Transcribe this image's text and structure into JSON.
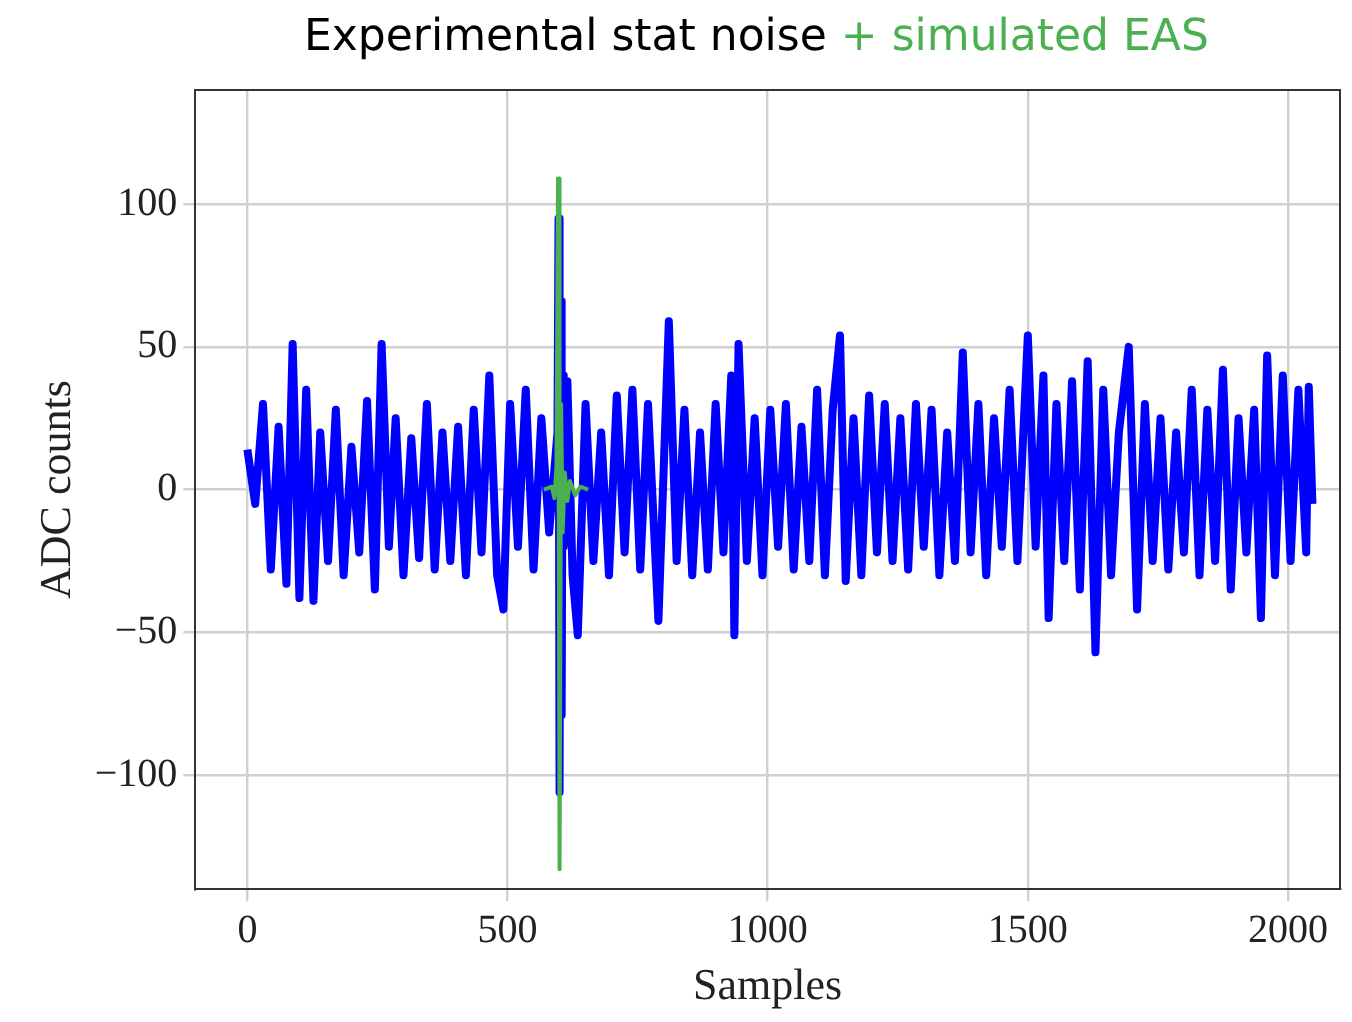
{
  "chart_data": {
    "type": "line",
    "title": "Experimental stat noise",
    "subtitle": "+ simulated EAS",
    "xlabel": "Samples",
    "ylabel": "ADC counts",
    "xlim": [
      -100,
      2100
    ],
    "xticks": [
      0,
      500,
      1000,
      1500,
      2000
    ],
    "ylim": [
      -140,
      140
    ],
    "yticks": [
      -100,
      -50,
      0,
      50,
      100
    ],
    "grid": true,
    "legend": false,
    "marker": "none",
    "line_style": "solid",
    "series": [
      {
        "color": "#0000ff",
        "x": [
          0,
          15,
          30,
          45,
          60,
          75,
          87,
          100,
          113,
          127,
          140,
          155,
          170,
          185,
          200,
          215,
          230,
          245,
          258,
          272,
          285,
          300,
          315,
          330,
          345,
          360,
          375,
          390,
          405,
          420,
          435,
          450,
          465,
          480,
          492,
          505,
          520,
          535,
          550,
          565,
          580,
          596,
          598,
          600,
          602,
          604,
          606,
          608,
          615,
          625,
          635,
          650,
          665,
          680,
          695,
          710,
          725,
          740,
          755,
          770,
          790,
          810,
          825,
          840,
          855,
          870,
          885,
          900,
          915,
          930,
          936,
          944,
          960,
          975,
          990,
          1005,
          1020,
          1035,
          1050,
          1065,
          1080,
          1095,
          1110,
          1125,
          1139,
          1150,
          1165,
          1180,
          1195,
          1210,
          1225,
          1240,
          1255,
          1270,
          1285,
          1300,
          1315,
          1330,
          1345,
          1360,
          1375,
          1390,
          1405,
          1420,
          1435,
          1450,
          1465,
          1480,
          1500,
          1515,
          1530,
          1540,
          1555,
          1570,
          1585,
          1600,
          1615,
          1630,
          1645,
          1660,
          1675,
          1694,
          1710,
          1725,
          1740,
          1755,
          1770,
          1785,
          1800,
          1815,
          1830,
          1845,
          1860,
          1875,
          1890,
          1905,
          1920,
          1935,
          1948,
          1960,
          1975,
          1990,
          2005,
          2020,
          2035,
          2040,
          2047
        ],
        "values": [
          14,
          -5,
          30,
          -28,
          22,
          -33,
          51,
          -38,
          35,
          -39,
          20,
          -25,
          28,
          -30,
          15,
          -22,
          31,
          -35,
          51,
          -20,
          25,
          -30,
          18,
          -24,
          30,
          -28,
          20,
          -25,
          22,
          -30,
          28,
          -22,
          40,
          -30,
          -42,
          30,
          -20,
          35,
          -28,
          25,
          -15,
          20,
          95,
          -106,
          66,
          -79,
          40,
          -20,
          38,
          -30,
          -51,
          30,
          -25,
          20,
          -30,
          33,
          -22,
          35,
          -28,
          30,
          -46,
          59,
          -25,
          28,
          -30,
          20,
          -28,
          30,
          -22,
          40,
          -51,
          51,
          -25,
          25,
          -30,
          28,
          -20,
          30,
          -28,
          22,
          -25,
          35,
          -30,
          28,
          54,
          -32,
          25,
          -30,
          33,
          -22,
          30,
          -25,
          25,
          -28,
          30,
          -20,
          28,
          -30,
          20,
          -25,
          48,
          -22,
          30,
          -30,
          25,
          -20,
          35,
          -25,
          54,
          -20,
          40,
          -45,
          30,
          -25,
          38,
          -35,
          45,
          -57,
          35,
          -30,
          20,
          50,
          -42,
          30,
          -25,
          25,
          -28,
          20,
          -22,
          35,
          -30,
          28,
          -25,
          42,
          -35,
          25,
          -22,
          28,
          -45,
          47,
          -30,
          40,
          -25,
          35,
          -22,
          36,
          -5
        ]
      },
      {
        "color": "#4caf50",
        "x": [
          570,
          585,
          590,
          594,
          597,
          600,
          603,
          606,
          610,
          615,
          620,
          630,
          640,
          655
        ],
        "values": [
          0,
          1,
          -3,
          8,
          109,
          -133,
          30,
          -15,
          6,
          -4,
          3,
          -2,
          1,
          0
        ]
      }
    ]
  }
}
